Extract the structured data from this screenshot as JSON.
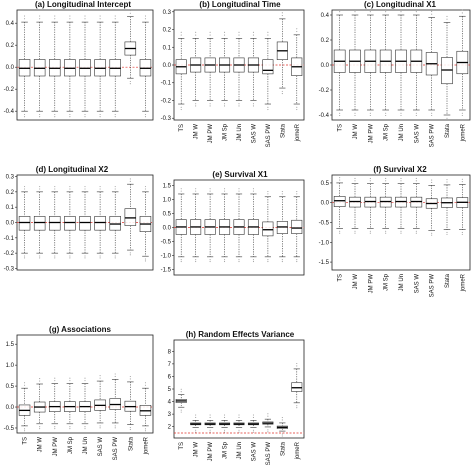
{
  "figure": {
    "rows": 3,
    "cols": 3
  },
  "chart_data": [
    {
      "type": "boxplot",
      "title": "(a) Longitudinal Intercept",
      "ylim": [
        -0.48,
        0.52
      ],
      "yticks": [
        -0.4,
        -0.2,
        0.0,
        0.2,
        0.4
      ],
      "tick_labels": [
        "-0.4",
        "-0.2",
        "0.0",
        "0.2",
        "0.4"
      ],
      "reference_line": 0.0,
      "categories": [],
      "boxes": [
        {
          "whisker_low": -0.4,
          "q1": -0.08,
          "median": -0.01,
          "q3": 0.07,
          "whisker_high": 0.41
        },
        {
          "whisker_low": -0.4,
          "q1": -0.08,
          "median": -0.01,
          "q3": 0.07,
          "whisker_high": 0.41
        },
        {
          "whisker_low": -0.4,
          "q1": -0.08,
          "median": -0.01,
          "q3": 0.07,
          "whisker_high": 0.41
        },
        {
          "whisker_low": -0.4,
          "q1": -0.08,
          "median": -0.01,
          "q3": 0.07,
          "whisker_high": 0.41
        },
        {
          "whisker_low": -0.4,
          "q1": -0.08,
          "median": -0.01,
          "q3": 0.07,
          "whisker_high": 0.41
        },
        {
          "whisker_low": -0.4,
          "q1": -0.08,
          "median": -0.01,
          "q3": 0.07,
          "whisker_high": 0.41
        },
        {
          "whisker_low": -0.4,
          "q1": -0.08,
          "median": -0.01,
          "q3": 0.07,
          "whisker_high": 0.41
        },
        {
          "whisker_low": -0.1,
          "q1": 0.11,
          "median": 0.17,
          "q3": 0.23,
          "whisker_high": 0.46
        },
        {
          "whisker_low": -0.4,
          "q1": -0.08,
          "median": -0.01,
          "q3": 0.07,
          "whisker_high": 0.41
        }
      ]
    },
    {
      "type": "boxplot",
      "title": "(b) Longitudinal Time",
      "ylim": [
        -0.31,
        0.31
      ],
      "yticks": [
        -0.3,
        -0.2,
        -0.1,
        0.0,
        0.1,
        0.2,
        0.3
      ],
      "tick_labels": [
        "-0.3",
        "-0.2",
        "-0.1",
        "0.0",
        "0.1",
        "0.2",
        "0.3"
      ],
      "reference_line": 0.0,
      "categories": [
        "TS",
        "JM W",
        "JM PW",
        "JM Sp",
        "JM Un",
        "SAS W",
        "SAS PW",
        "Stata",
        "jomeR"
      ],
      "boxes": [
        {
          "whisker_low": -0.22,
          "q1": -0.05,
          "median": -0.01,
          "q3": 0.03,
          "whisker_high": 0.15
        },
        {
          "whisker_low": -0.2,
          "q1": -0.04,
          "median": 0.0,
          "q3": 0.04,
          "whisker_high": 0.15
        },
        {
          "whisker_low": -0.2,
          "q1": -0.04,
          "median": 0.0,
          "q3": 0.04,
          "whisker_high": 0.15
        },
        {
          "whisker_low": -0.2,
          "q1": -0.04,
          "median": 0.0,
          "q3": 0.04,
          "whisker_high": 0.15
        },
        {
          "whisker_low": -0.2,
          "q1": -0.04,
          "median": 0.0,
          "q3": 0.04,
          "whisker_high": 0.15
        },
        {
          "whisker_low": -0.2,
          "q1": -0.04,
          "median": 0.0,
          "q3": 0.04,
          "whisker_high": 0.15
        },
        {
          "whisker_low": -0.22,
          "q1": -0.05,
          "median": -0.03,
          "q3": 0.03,
          "whisker_high": 0.15
        },
        {
          "whisker_low": -0.13,
          "q1": 0.03,
          "median": 0.08,
          "q3": 0.13,
          "whisker_high": 0.26
        },
        {
          "whisker_low": -0.22,
          "q1": -0.06,
          "median": -0.01,
          "q3": 0.04,
          "whisker_high": 0.17
        }
      ]
    },
    {
      "type": "boxplot",
      "title": "(c) Longitudinal X1",
      "ylim": [
        -0.44,
        0.44
      ],
      "yticks": [
        -0.4,
        -0.2,
        0.0,
        0.2,
        0.4
      ],
      "tick_labels": [
        "-0.4",
        "-0.2",
        "0.0",
        "0.2",
        "0.4"
      ],
      "reference_line": 0.0,
      "categories": [
        "TS",
        "JM W",
        "JM PW",
        "JM Sp",
        "JM Un",
        "SAS W",
        "SAS PW",
        "Stata",
        "jomeR"
      ],
      "boxes": [
        {
          "whisker_low": -0.36,
          "q1": -0.06,
          "median": 0.03,
          "q3": 0.12,
          "whisker_high": 0.4
        },
        {
          "whisker_low": -0.36,
          "q1": -0.06,
          "median": 0.03,
          "q3": 0.12,
          "whisker_high": 0.4
        },
        {
          "whisker_low": -0.36,
          "q1": -0.06,
          "median": 0.03,
          "q3": 0.12,
          "whisker_high": 0.4
        },
        {
          "whisker_low": -0.36,
          "q1": -0.06,
          "median": 0.03,
          "q3": 0.12,
          "whisker_high": 0.4
        },
        {
          "whisker_low": -0.36,
          "q1": -0.06,
          "median": 0.03,
          "q3": 0.12,
          "whisker_high": 0.4
        },
        {
          "whisker_low": -0.36,
          "q1": -0.06,
          "median": 0.03,
          "q3": 0.12,
          "whisker_high": 0.4
        },
        {
          "whisker_low": -0.36,
          "q1": -0.08,
          "median": 0.01,
          "q3": 0.1,
          "whisker_high": 0.38
        },
        {
          "whisker_low": -0.4,
          "q1": -0.15,
          "median": -0.04,
          "q3": 0.06,
          "whisker_high": 0.34
        },
        {
          "whisker_low": -0.36,
          "q1": -0.07,
          "median": 0.02,
          "q3": 0.11,
          "whisker_high": 0.39
        }
      ]
    },
    {
      "type": "boxplot",
      "title": "(d) Longitudinal X2",
      "ylim": [
        -0.31,
        0.31
      ],
      "yticks": [
        -0.3,
        -0.2,
        -0.1,
        0.0,
        0.1,
        0.2,
        0.3
      ],
      "tick_labels": [
        "-0.3",
        "-0.2",
        "-0.1",
        "0.0",
        "0.1",
        "0.2",
        "0.3"
      ],
      "reference_line": 0.0,
      "categories": [],
      "boxes": [
        {
          "whisker_low": -0.2,
          "q1": -0.05,
          "median": 0.0,
          "q3": 0.04,
          "whisker_high": 0.2
        },
        {
          "whisker_low": -0.2,
          "q1": -0.05,
          "median": 0.0,
          "q3": 0.04,
          "whisker_high": 0.2
        },
        {
          "whisker_low": -0.2,
          "q1": -0.05,
          "median": 0.0,
          "q3": 0.04,
          "whisker_high": 0.2
        },
        {
          "whisker_low": -0.2,
          "q1": -0.05,
          "median": 0.0,
          "q3": 0.04,
          "whisker_high": 0.2
        },
        {
          "whisker_low": -0.2,
          "q1": -0.05,
          "median": 0.0,
          "q3": 0.04,
          "whisker_high": 0.2
        },
        {
          "whisker_low": -0.2,
          "q1": -0.05,
          "median": 0.0,
          "q3": 0.04,
          "whisker_high": 0.2
        },
        {
          "whisker_low": -0.2,
          "q1": -0.05,
          "median": -0.01,
          "q3": 0.04,
          "whisker_high": 0.2
        },
        {
          "whisker_low": -0.18,
          "q1": -0.02,
          "median": 0.03,
          "q3": 0.09,
          "whisker_high": 0.25
        },
        {
          "whisker_low": -0.22,
          "q1": -0.06,
          "median": -0.01,
          "q3": 0.04,
          "whisker_high": 0.2
        }
      ]
    },
    {
      "type": "boxplot",
      "title": "(e) Survival X1",
      "ylim": [
        -1.7,
        1.7
      ],
      "yticks": [
        -1.5,
        -1.0,
        -0.5,
        0.0,
        0.5,
        1.0,
        1.5
      ],
      "tick_labels": [
        "-1.5",
        "-1.0",
        "-0.5",
        "0.0",
        "0.5",
        "1.0",
        "1.5"
      ],
      "reference_line": 0.0,
      "categories": [],
      "boxes": [
        {
          "whisker_low": -1.05,
          "q1": -0.25,
          "median": 0.02,
          "q3": 0.28,
          "whisker_high": 1.2
        },
        {
          "whisker_low": -1.05,
          "q1": -0.25,
          "median": 0.02,
          "q3": 0.28,
          "whisker_high": 1.2
        },
        {
          "whisker_low": -1.05,
          "q1": -0.25,
          "median": 0.02,
          "q3": 0.28,
          "whisker_high": 1.2
        },
        {
          "whisker_low": -1.05,
          "q1": -0.25,
          "median": 0.02,
          "q3": 0.28,
          "whisker_high": 1.2
        },
        {
          "whisker_low": -1.05,
          "q1": -0.25,
          "median": 0.02,
          "q3": 0.28,
          "whisker_high": 1.2
        },
        {
          "whisker_low": -1.05,
          "q1": -0.25,
          "median": 0.02,
          "q3": 0.28,
          "whisker_high": 1.2
        },
        {
          "whisker_low": -1.05,
          "q1": -0.3,
          "median": -0.08,
          "q3": 0.2,
          "whisker_high": 1.1
        },
        {
          "whisker_low": -1.05,
          "q1": -0.22,
          "median": 0.02,
          "q3": 0.22,
          "whisker_high": 1.1
        },
        {
          "whisker_low": -1.05,
          "q1": -0.22,
          "median": -0.02,
          "q3": 0.26,
          "whisker_high": 1.1
        }
      ]
    },
    {
      "type": "boxplot",
      "title": "(f) Survival X2",
      "ylim": [
        -1.7,
        0.7
      ],
      "yticks": [
        -1.5,
        -1.0,
        -0.5,
        0.0,
        0.5
      ],
      "tick_labels": [
        "-1.5",
        "-1.0",
        "-0.5",
        "0.0",
        "0.5"
      ],
      "reference_line": 0.0,
      "categories": [
        "TS",
        "JM W",
        "JM PW",
        "JM Sp",
        "JM Un",
        "SAS W",
        "SAS PW",
        "Stata",
        "jomeR"
      ],
      "boxes": [
        {
          "whisker_low": -0.65,
          "q1": -0.1,
          "median": 0.05,
          "q3": 0.16,
          "whisker_high": 0.5
        },
        {
          "whisker_low": -0.65,
          "q1": -0.11,
          "median": 0.03,
          "q3": 0.14,
          "whisker_high": 0.48
        },
        {
          "whisker_low": -0.65,
          "q1": -0.11,
          "median": 0.03,
          "q3": 0.14,
          "whisker_high": 0.48
        },
        {
          "whisker_low": -0.65,
          "q1": -0.11,
          "median": 0.03,
          "q3": 0.14,
          "whisker_high": 0.48
        },
        {
          "whisker_low": -0.65,
          "q1": -0.11,
          "median": 0.03,
          "q3": 0.14,
          "whisker_high": 0.48
        },
        {
          "whisker_low": -0.65,
          "q1": -0.11,
          "median": 0.03,
          "q3": 0.14,
          "whisker_high": 0.48
        },
        {
          "whisker_low": -0.7,
          "q1": -0.14,
          "median": -0.02,
          "q3": 0.1,
          "whisker_high": 0.44
        },
        {
          "whisker_low": -0.68,
          "q1": -0.12,
          "median": 0.0,
          "q3": 0.12,
          "whisker_high": 0.45
        },
        {
          "whisker_low": -0.68,
          "q1": -0.12,
          "median": 0.01,
          "q3": 0.13,
          "whisker_high": 0.46
        }
      ]
    },
    {
      "type": "boxplot",
      "title": "(g) Associations",
      "ylim": [
        -0.62,
        1.72
      ],
      "yticks": [
        -0.5,
        0.0,
        0.5,
        1.0,
        1.5
      ],
      "tick_labels": [
        "-0.5",
        "0.0",
        "0.5",
        "1.0",
        "1.5"
      ],
      "reference_line": 0.0,
      "categories": [
        "TS",
        "JM W",
        "JM PW",
        "JM Sp",
        "JM Un",
        "SAS W",
        "SAS PW",
        "Stata",
        "jomeR"
      ],
      "boxes": [
        {
          "whisker_low": -0.45,
          "q1": -0.2,
          "median": -0.08,
          "q3": 0.05,
          "whisker_high": 0.45
        },
        {
          "whisker_low": -0.4,
          "q1": -0.12,
          "median": 0.0,
          "q3": 0.12,
          "whisker_high": 0.55
        },
        {
          "whisker_low": -0.4,
          "q1": -0.11,
          "median": 0.01,
          "q3": 0.13,
          "whisker_high": 0.56
        },
        {
          "whisker_low": -0.4,
          "q1": -0.11,
          "median": 0.01,
          "q3": 0.13,
          "whisker_high": 0.56
        },
        {
          "whisker_low": -0.4,
          "q1": -0.11,
          "median": 0.01,
          "q3": 0.13,
          "whisker_high": 0.56
        },
        {
          "whisker_low": -0.38,
          "q1": -0.08,
          "median": 0.04,
          "q3": 0.17,
          "whisker_high": 0.62
        },
        {
          "whisker_low": -0.38,
          "q1": -0.06,
          "median": 0.06,
          "q3": 0.2,
          "whisker_high": 0.66
        },
        {
          "whisker_low": -0.42,
          "q1": -0.1,
          "median": 0.01,
          "q3": 0.14,
          "whisker_high": 0.6
        },
        {
          "whisker_low": -0.45,
          "q1": -0.2,
          "median": -0.09,
          "q3": 0.04,
          "whisker_high": 0.45
        }
      ]
    },
    {
      "type": "boxplot",
      "title": "(h) Random Effects Variance",
      "ylim": [
        1.1,
        8.9
      ],
      "yticks": [
        2,
        3,
        4,
        5,
        6,
        7,
        8
      ],
      "tick_labels": [
        "2",
        "3",
        "4",
        "5",
        "6",
        "7",
        "8"
      ],
      "reference_line": 1.5,
      "categories": [
        "TS",
        "JM W",
        "JM PW",
        "JM Sp",
        "JM Un",
        "SAS W",
        "SAS PW",
        "Stata",
        "jomeR"
      ],
      "boxes": [
        {
          "whisker_low": 3.55,
          "q1": 3.92,
          "median": 4.05,
          "q3": 4.18,
          "whisker_high": 4.55
        },
        {
          "whisker_low": 1.95,
          "q1": 2.15,
          "median": 2.22,
          "q3": 2.3,
          "whisker_high": 2.5
        },
        {
          "whisker_low": 1.95,
          "q1": 2.15,
          "median": 2.22,
          "q3": 2.3,
          "whisker_high": 2.5
        },
        {
          "whisker_low": 1.95,
          "q1": 2.15,
          "median": 2.22,
          "q3": 2.3,
          "whisker_high": 2.5
        },
        {
          "whisker_low": 1.95,
          "q1": 2.15,
          "median": 2.22,
          "q3": 2.3,
          "whisker_high": 2.5
        },
        {
          "whisker_low": 1.95,
          "q1": 2.15,
          "median": 2.22,
          "q3": 2.3,
          "whisker_high": 2.5
        },
        {
          "whisker_low": 1.98,
          "q1": 2.2,
          "median": 2.28,
          "q3": 2.38,
          "whisker_high": 2.6
        },
        {
          "whisker_low": 1.65,
          "q1": 1.85,
          "median": 1.95,
          "q3": 2.05,
          "whisker_high": 2.3
        },
        {
          "whisker_low": 3.9,
          "q1": 4.8,
          "median": 5.1,
          "q3": 5.5,
          "whisker_high": 6.6
        }
      ]
    }
  ]
}
